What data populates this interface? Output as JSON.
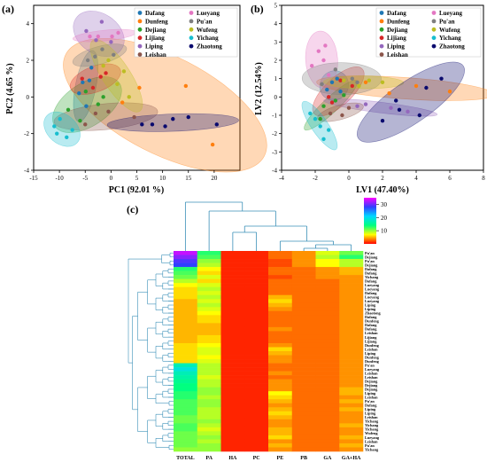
{
  "figure": {
    "panels": [
      "(a)",
      "(b)",
      "(c)"
    ]
  },
  "chart_data": [
    {
      "panel": "(a)",
      "type": "scatter",
      "xlabel": "PC1 (92.01 %)",
      "ylabel": "PC2 (4.65 %)",
      "xlim": [
        -15,
        25
      ],
      "ylim": [
        -4,
        5
      ],
      "xticks": [
        "-15",
        "-10",
        "-5",
        "0",
        "5",
        "10",
        "15",
        "20"
      ],
      "yticks": [
        "-4",
        "-2",
        "0",
        "2",
        "4"
      ],
      "legend_position": "top-right",
      "series": [
        {
          "name": "Dafang",
          "color": "#1f77b4",
          "points": [
            [
              -5.5,
              0.8
            ],
            [
              -4.2,
              0.9
            ],
            [
              -3.8,
              1.6
            ],
            [
              -6.2,
              0.2
            ],
            [
              -4.8,
              -0.5
            ]
          ]
        },
        {
          "name": "Dunfeng",
          "color": "#ff7f0e",
          "points": [
            [
              5.5,
              0.5
            ],
            [
              14.5,
              0.6
            ],
            [
              19.7,
              -2.6
            ],
            [
              2.2,
              -0.3
            ]
          ]
        },
        {
          "name": "Dejiang",
          "color": "#2ca02c",
          "points": [
            [
              -4.9,
              0.3
            ],
            [
              -2.5,
              -0.4
            ],
            [
              -1.5,
              0.0
            ],
            [
              -8.3,
              -0.7
            ],
            [
              -6.0,
              -1.3
            ]
          ]
        },
        {
          "name": "Lijiang",
          "color": "#d62728",
          "points": [
            [
              -2.0,
              1.1
            ],
            [
              -1.0,
              1.3
            ],
            [
              -5.6,
              1.0
            ],
            [
              -3.5,
              0.5
            ]
          ]
        },
        {
          "name": "Liping",
          "color": "#9467bd",
          "points": [
            [
              -4.8,
              3.6
            ],
            [
              -2.9,
              3.1
            ],
            [
              -1.8,
              4.1
            ],
            [
              0.0,
              3.0
            ]
          ]
        },
        {
          "name": "Leishan",
          "color": "#8c564b",
          "points": [
            [
              -0.5,
              -0.8
            ],
            [
              -3.0,
              -0.9
            ],
            [
              -5.0,
              -1.5
            ],
            [
              4.5,
              -1.1
            ]
          ]
        },
        {
          "name": "Lueyang",
          "color": "#e377c2",
          "points": [
            [
              -2.5,
              3.3
            ],
            [
              0.2,
              3.3
            ],
            [
              1.4,
              3.5
            ],
            [
              -4.1,
              3.3
            ]
          ]
        },
        {
          "name": "Pu'an",
          "color": "#7f7f7f",
          "points": [
            [
              -3.1,
              2.2
            ],
            [
              -1.7,
              2.6
            ],
            [
              0.5,
              2.3
            ],
            [
              -4.5,
              2.0
            ]
          ]
        },
        {
          "name": "Wufeng",
          "color": "#bcbd22",
          "points": [
            [
              -1.5,
              1.7
            ],
            [
              -0.5,
              2.0
            ],
            [
              1.2,
              0.7
            ],
            [
              2.5,
              1.4
            ],
            [
              3.5,
              0.0
            ]
          ]
        },
        {
          "name": "Yichang",
          "color": "#17becf",
          "points": [
            [
              -11.0,
              -1.6
            ],
            [
              -9.9,
              -1.2
            ],
            [
              -8.6,
              -2.2
            ],
            [
              -7.5,
              -1.8
            ],
            [
              -10.5,
              -2.0
            ]
          ]
        },
        {
          "name": "Zhaotong",
          "color": "#0a0a6e",
          "points": [
            [
              6.0,
              -1.5
            ],
            [
              8.0,
              -1.5
            ],
            [
              10.5,
              -1.6
            ],
            [
              15.0,
              -1.1
            ],
            [
              20.5,
              -1.5
            ],
            [
              12.0,
              -1.2
            ]
          ]
        }
      ]
    },
    {
      "panel": "(b)",
      "type": "scatter",
      "xlabel": "LV1 (47.40%)",
      "ylabel": "LV2 (12.54%)",
      "xlim": [
        -4,
        8
      ],
      "ylim": [
        -4,
        5
      ],
      "xticks": [
        "-4",
        "-2",
        "0",
        "2",
        "4",
        "6",
        "8"
      ],
      "yticks": [
        "-4",
        "-3",
        "-2",
        "-1",
        "0",
        "1",
        "2",
        "3",
        "4",
        "5"
      ],
      "legend_position": "top-right",
      "series": [
        {
          "name": "Dafang",
          "color": "#1f77b4",
          "points": [
            [
              -1.0,
              0.8
            ],
            [
              -0.7,
              1.0
            ],
            [
              -1.3,
              0.4
            ],
            [
              -0.5,
              0.3
            ]
          ]
        },
        {
          "name": "Dunfeng",
          "color": "#ff7f0e",
          "points": [
            [
              1.0,
              0.8
            ],
            [
              4.0,
              0.6
            ],
            [
              6.0,
              0.3
            ],
            [
              2.4,
              0.2
            ]
          ]
        },
        {
          "name": "Dejiang",
          "color": "#2ca02c",
          "points": [
            [
              -1.5,
              -0.5
            ],
            [
              -0.8,
              -0.2
            ],
            [
              -1.7,
              -1.2
            ],
            [
              -0.3,
              0.1
            ]
          ]
        },
        {
          "name": "Lijiang",
          "color": "#d62728",
          "points": [
            [
              -1.0,
              -0.3
            ],
            [
              -0.5,
              0.9
            ],
            [
              0.2,
              0.6
            ],
            [
              -1.2,
              0.0
            ]
          ]
        },
        {
          "name": "Liping",
          "color": "#9467bd",
          "points": [
            [
              0.5,
              -0.5
            ],
            [
              1.0,
              -0.4
            ],
            [
              2.5,
              -0.6
            ],
            [
              3.5,
              -0.8
            ]
          ]
        },
        {
          "name": "Leishan",
          "color": "#8c564b",
          "points": [
            [
              -1.1,
              -0.9
            ],
            [
              -0.4,
              -1.0
            ],
            [
              0.0,
              -0.6
            ]
          ]
        },
        {
          "name": "Lueyang",
          "color": "#e377c2",
          "points": [
            [
              -1.8,
              2.5
            ],
            [
              -1.5,
              2.0
            ],
            [
              -2.2,
              1.7
            ],
            [
              -1.4,
              2.8
            ],
            [
              -1.2,
              1.2
            ]
          ]
        },
        {
          "name": "Pu'an",
          "color": "#7f7f7f",
          "points": [
            [
              -0.8,
              1.5
            ],
            [
              0.2,
              1.0
            ],
            [
              0.5,
              0.8
            ],
            [
              -1.6,
              0.7
            ]
          ]
        },
        {
          "name": "Wufeng",
          "color": "#bcbd22",
          "points": [
            [
              1.2,
              0.9
            ],
            [
              0.6,
              0.6
            ],
            [
              -0.3,
              0.9
            ],
            [
              2.0,
              0.8
            ]
          ]
        },
        {
          "name": "Yichang",
          "color": "#17becf",
          "points": [
            [
              -2.0,
              -1.2
            ],
            [
              -1.7,
              -1.6
            ],
            [
              -1.2,
              -1.8
            ],
            [
              -2.3,
              -0.9
            ],
            [
              -1.5,
              -2.3
            ]
          ]
        },
        {
          "name": "Zhaotong",
          "color": "#0a0a6e",
          "points": [
            [
              2.0,
              -1.3
            ],
            [
              3.0,
              -0.7
            ],
            [
              4.2,
              -1.0
            ],
            [
              4.6,
              0.5
            ],
            [
              5.5,
              1.0
            ],
            [
              2.8,
              -0.2
            ]
          ]
        }
      ]
    },
    {
      "panel": "(c)",
      "type": "heatmap",
      "columns": [
        "TOTAL",
        "PA",
        "HA",
        "PC",
        "PE",
        "PB",
        "GA",
        "GA+HA"
      ],
      "rows": [
        "Pu'an",
        "Dejiang",
        "Pu'an",
        "Dejiang",
        "Dafang",
        "Dafang",
        "Yichang",
        "Dafang",
        "Lueyang",
        "Lueyang",
        "Dafang",
        "Lueyang",
        "Lueyang",
        "Liping",
        "Liping",
        "Zhaotong",
        "Dafang",
        "Dunfeng",
        "Dafang",
        "Dafang",
        "Leishan",
        "Lijiang",
        "Lijiang",
        "Dunfeng",
        "Leishan",
        "Liping",
        "Dunfeng",
        "Dunfeng",
        "Pu'an",
        "Lueyang",
        "Leishan",
        "Leishan",
        "Dejiang",
        "Dejiang",
        "Dejiang",
        "Liping",
        "Leishan",
        "Pu'an",
        "Dafang",
        "Liping",
        "Liping",
        "Leishan",
        "Yichang",
        "Yichang",
        "Yichang",
        "Wufeng",
        "Lueyang",
        "Leishan",
        "Pu'an",
        "Yichang"
      ],
      "colorbar": {
        "ticks": [
          "10",
          "20",
          "30"
        ],
        "min": 0,
        "max": 35
      },
      "values": [
        [
          33,
          13,
          1,
          1,
          3,
          4,
          8,
          11
        ],
        [
          31,
          12,
          1,
          1,
          3,
          4,
          9,
          13
        ],
        [
          29,
          10,
          1,
          1,
          2,
          4,
          7,
          9
        ],
        [
          28,
          9,
          1,
          1,
          2,
          4,
          7,
          9
        ],
        [
          13,
          7,
          1,
          1,
          3,
          3,
          4,
          5
        ],
        [
          12,
          6,
          1,
          1,
          3,
          3,
          4,
          5
        ],
        [
          11,
          8,
          1,
          1,
          2,
          3,
          4,
          4
        ],
        [
          9,
          6,
          1,
          1,
          3,
          3,
          3,
          4
        ],
        [
          7,
          8,
          1,
          1,
          3,
          3,
          3,
          4
        ],
        [
          6,
          9,
          1,
          1,
          3,
          3,
          3,
          4
        ],
        [
          6,
          8,
          1,
          1,
          3,
          3,
          3,
          4
        ],
        [
          6,
          9,
          1,
          1,
          5,
          3,
          3,
          4
        ],
        [
          5,
          8,
          1,
          1,
          6,
          3,
          3,
          4
        ],
        [
          5,
          9,
          1,
          1,
          5,
          3,
          3,
          4
        ],
        [
          5,
          8,
          1,
          1,
          4,
          3,
          3,
          4
        ],
        [
          5,
          7,
          1,
          1,
          3,
          3,
          3,
          4
        ],
        [
          5,
          6,
          1,
          1,
          3,
          3,
          3,
          4
        ],
        [
          5,
          6,
          1,
          1,
          3,
          3,
          3,
          4
        ],
        [
          5,
          5,
          1,
          1,
          3,
          3,
          3,
          4
        ],
        [
          5,
          5,
          1,
          1,
          4,
          3,
          3,
          4
        ],
        [
          5,
          5,
          1,
          1,
          3,
          3,
          3,
          4
        ],
        [
          5,
          6,
          1,
          1,
          3,
          3,
          3,
          4
        ],
        [
          5,
          6,
          1,
          1,
          3,
          3,
          3,
          4
        ],
        [
          6,
          7,
          1,
          1,
          4,
          3,
          3,
          4
        ],
        [
          6,
          8,
          1,
          1,
          6,
          3,
          3,
          4
        ],
        [
          6,
          8,
          1,
          1,
          5,
          3,
          3,
          4
        ],
        [
          6,
          7,
          1,
          1,
          4,
          3,
          3,
          4
        ],
        [
          6,
          8,
          1,
          1,
          4,
          3,
          3,
          4
        ],
        [
          17,
          9,
          1,
          1,
          3,
          3,
          3,
          4
        ],
        [
          19,
          9,
          1,
          1,
          3,
          3,
          3,
          4
        ],
        [
          17,
          9,
          1,
          1,
          4,
          3,
          3,
          4
        ],
        [
          16,
          8,
          1,
          1,
          3,
          3,
          3,
          4
        ],
        [
          15,
          9,
          1,
          1,
          4,
          3,
          3,
          4
        ],
        [
          14,
          9,
          1,
          1,
          4,
          3,
          3,
          4
        ],
        [
          14,
          10,
          1,
          1,
          4,
          3,
          3,
          5
        ],
        [
          13,
          10,
          1,
          1,
          7,
          3,
          3,
          5
        ],
        [
          13,
          9,
          1,
          1,
          6,
          3,
          3,
          4
        ],
        [
          12,
          10,
          1,
          1,
          5,
          3,
          3,
          5
        ],
        [
          12,
          10,
          1,
          1,
          4,
          3,
          3,
          4
        ],
        [
          12,
          9,
          1,
          1,
          5,
          3,
          3,
          5
        ],
        [
          12,
          9,
          1,
          1,
          6,
          3,
          3,
          4
        ],
        [
          11,
          9,
          1,
          1,
          5,
          3,
          3,
          4
        ],
        [
          11,
          10,
          1,
          1,
          4,
          3,
          3,
          4
        ],
        [
          12,
          9,
          1,
          1,
          4,
          3,
          3,
          5
        ],
        [
          12,
          8,
          1,
          1,
          5,
          3,
          3,
          4
        ],
        [
          11,
          9,
          1,
          1,
          5,
          3,
          3,
          4
        ],
        [
          11,
          10,
          1,
          1,
          6,
          3,
          3,
          5
        ],
        [
          11,
          9,
          1,
          1,
          4,
          3,
          3,
          4
        ],
        [
          11,
          10,
          1,
          1,
          5,
          3,
          3,
          5
        ],
        [
          10,
          10,
          1,
          1,
          4,
          3,
          3,
          4
        ]
      ]
    }
  ]
}
